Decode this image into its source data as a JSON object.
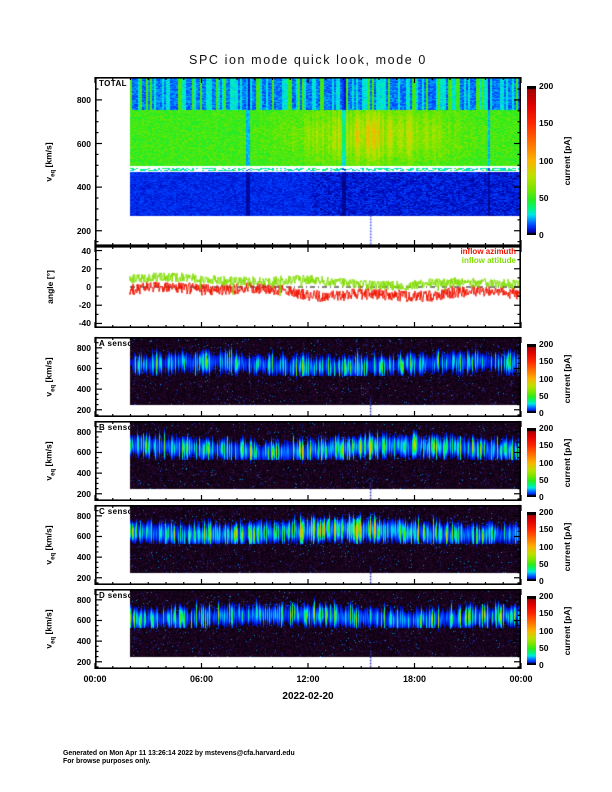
{
  "title": "SPC ion mode quick look, mode 0",
  "footer": {
    "line1": "Generated on Mon Apr 11 13:26:14 2022 by mstevens@cfa.harvard.edu",
    "line2": "For browse purposes only."
  },
  "chart_data": {
    "type": "heatmap",
    "title": "SPC ion mode quick look, mode 0",
    "x_axis": {
      "tick_labels": [
        "00:00",
        "06:00",
        "12:00",
        "18:00",
        "00:00"
      ],
      "tick_hours": [
        0,
        6,
        12,
        18,
        24
      ],
      "minor_step_hours": 1,
      "label": "2022-02-20",
      "hours_total": 24
    },
    "colorbar": {
      "ticks": [
        0,
        50,
        100,
        150,
        200
      ],
      "label": "current [pA]",
      "max_pA": 200,
      "stops": [
        [
          0,
          5,
          5,
          60
        ],
        [
          6,
          0,
          10,
          190
        ],
        [
          13,
          0,
          60,
          255
        ],
        [
          20,
          0,
          140,
          255
        ],
        [
          28,
          0,
          230,
          230
        ],
        [
          36,
          0,
          245,
          130
        ],
        [
          48,
          40,
          235,
          30
        ],
        [
          62,
          120,
          230,
          0
        ],
        [
          80,
          190,
          225,
          0
        ],
        [
          100,
          250,
          180,
          0
        ],
        [
          125,
          255,
          110,
          0
        ],
        [
          150,
          255,
          40,
          0
        ],
        [
          175,
          225,
          0,
          0
        ],
        [
          200,
          150,
          0,
          0
        ]
      ]
    },
    "gap_marker_hour": 15.5,
    "data_start_hour": 2,
    "panels": [
      {
        "id": "total",
        "kind": "spectrogram",
        "variant": "total",
        "label": "TOTAL",
        "ylabel_base": "v",
        "ylabel_sub": "eq",
        "ylabel_rest": " [km/s]",
        "ylim": [
          130,
          905
        ],
        "yticks": [
          200,
          400,
          600,
          800
        ],
        "yminor_step": 50,
        "data_vmin": 270,
        "white_lines_v": [
          502,
          477
        ],
        "bands": {
          "top_v": [
            758,
            905
          ],
          "top_pA": [
            12,
            36
          ],
          "mid_v": [
            500,
            758
          ],
          "mid_pA": [
            44,
            94
          ],
          "low_v": [
            270,
            471
          ],
          "low_pA": [
            6,
            14
          ]
        }
      },
      {
        "id": "angle",
        "kind": "line",
        "label": "",
        "ylabel_base": "angle",
        "ylabel_sub": "",
        "ylabel_rest": " [°]",
        "ylim": [
          -45,
          45
        ],
        "yticks": [
          -40,
          -20,
          0,
          20,
          40
        ],
        "yminor_step": 10,
        "zero_line": true,
        "series": [
          {
            "name": "inflow azimuth",
            "color": "#ee1500",
            "mean_deg": -7,
            "spread_deg": 13
          },
          {
            "name": "inflow attitude",
            "color": "#80dd00",
            "mean_deg": 7,
            "spread_deg": 11
          }
        ]
      },
      {
        "id": "a",
        "kind": "spectrogram",
        "variant": "sensor",
        "label": "A sensor",
        "ylabel_base": "v",
        "ylabel_sub": "eq",
        "ylabel_rest": " [km/s]",
        "ylim": [
          130,
          905
        ],
        "yticks": [
          200,
          400,
          600,
          800
        ],
        "yminor_step": 50,
        "data_vmin": 250,
        "band_center_v": 640,
        "peak_pA_max": 90,
        "brightness": 0.78,
        "mid_boost": 0.1,
        "phase": 0.0
      },
      {
        "id": "b",
        "kind": "spectrogram",
        "variant": "sensor",
        "label": "B sensor",
        "ylabel_base": "v",
        "ylabel_sub": "eq",
        "ylabel_rest": " [km/s]",
        "ylim": [
          130,
          905
        ],
        "yticks": [
          200,
          400,
          600,
          800
        ],
        "yminor_step": 50,
        "data_vmin": 250,
        "band_center_v": 640,
        "peak_pA_max": 95,
        "brightness": 1.0,
        "mid_boost": 0.45,
        "phase": 1.5
      },
      {
        "id": "c",
        "kind": "spectrogram",
        "variant": "sensor",
        "label": "C sensor",
        "ylabel_base": "v",
        "ylabel_sub": "eq",
        "ylabel_rest": " [km/s]",
        "ylim": [
          130,
          905
        ],
        "yticks": [
          200,
          400,
          600,
          800
        ],
        "yminor_step": 50,
        "data_vmin": 250,
        "band_center_v": 645,
        "peak_pA_max": 100,
        "brightness": 1.12,
        "mid_boost": 0.5,
        "phase": 3.0
      },
      {
        "id": "d",
        "kind": "spectrogram",
        "variant": "sensor",
        "label": "D sensor",
        "ylabel_base": "v",
        "ylabel_sub": "eq",
        "ylabel_rest": " [km/s]",
        "ylim": [
          130,
          905
        ],
        "yticks": [
          200,
          400,
          600,
          800
        ],
        "yminor_step": 50,
        "data_vmin": 250,
        "band_center_v": 640,
        "peak_pA_max": 90,
        "brightness": 0.92,
        "mid_boost": 0.15,
        "phase": 4.5
      }
    ]
  }
}
